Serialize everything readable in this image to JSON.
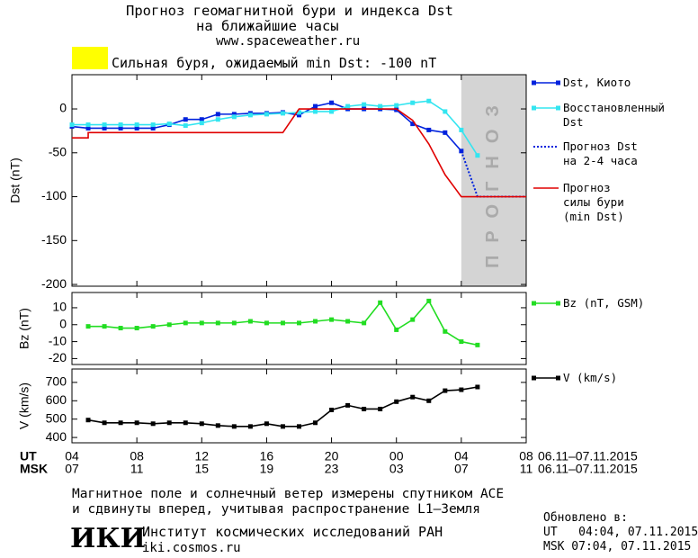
{
  "header": {
    "title": "Прогноз геомагнитной бури и индекса Dst",
    "subtitle": "на ближайшие часы",
    "url": "www.spaceweather.ru",
    "alert": "Сильная буря, ожидаемый min Dst: -100 nT",
    "alert_color": "#ffff00"
  },
  "chart_data": [
    {
      "type": "line",
      "ylabel": "Dst (nT)",
      "xlim": [
        0,
        28
      ],
      "xticks": [
        0,
        4,
        8,
        12,
        16,
        20,
        24,
        28
      ],
      "ylim": [
        -202,
        39
      ],
      "yticks": [
        -200,
        -150,
        -100,
        -50,
        0
      ],
      "forecast_band": {
        "x": [
          24,
          28
        ],
        "label": "ПРОГНОЗ"
      },
      "series": [
        {
          "name": "Dst, Киото",
          "color": "#0022dd",
          "style": "solid",
          "marker": true,
          "x": [
            0,
            1,
            2,
            3,
            4,
            5,
            6,
            7,
            8,
            9,
            10,
            11,
            12,
            13,
            14,
            15,
            16,
            17,
            18,
            19,
            20,
            21,
            22,
            23,
            24
          ],
          "values": [
            -20,
            -22,
            -22,
            -22,
            -22,
            -22,
            -18,
            -12,
            -12,
            -6,
            -6,
            -5,
            -5,
            -4,
            -7,
            3,
            7,
            0,
            0,
            0,
            -1,
            -17,
            -24,
            -27,
            -48
          ]
        },
        {
          "name": "Восстановленный\nDst",
          "color": "#33e5f0",
          "style": "solid",
          "marker": true,
          "x": [
            0,
            1,
            2,
            3,
            4,
            5,
            6,
            7,
            8,
            9,
            10,
            11,
            12,
            13,
            14,
            15,
            16,
            17,
            18,
            19,
            20,
            21,
            22,
            23,
            24,
            25
          ],
          "values": [
            -18,
            -18,
            -18,
            -18,
            -18,
            -18,
            -17,
            -19,
            -16,
            -12,
            -9,
            -7,
            -6,
            -5,
            -4,
            -3,
            -3,
            3,
            5,
            3,
            4,
            7,
            9,
            -3,
            -24,
            -53
          ]
        },
        {
          "name": "Прогноз Dst\nна 2-4 часа",
          "color": "#0022dd",
          "style": "dotted",
          "marker": false,
          "x": [
            24,
            25,
            28
          ],
          "values": [
            -48,
            -100,
            -100
          ]
        },
        {
          "name": "Прогноз\nсилы бури\n(min Dst)",
          "color": "#e00000",
          "style": "solid",
          "marker": false,
          "x": [
            0,
            1,
            1,
            13,
            14,
            20,
            21,
            22,
            23,
            24,
            28
          ],
          "values": [
            -33,
            -33,
            -27,
            -27,
            0,
            0,
            -13,
            -40,
            -75,
            -100,
            -100
          ]
        }
      ]
    },
    {
      "type": "line",
      "ylabel": "Bz (nT)",
      "xlim": [
        0,
        28
      ],
      "xticks": [
        0,
        4,
        8,
        12,
        16,
        20,
        24,
        28
      ],
      "ylim": [
        -23.5,
        19
      ],
      "yticks": [
        -20,
        -10,
        0,
        10
      ],
      "series": [
        {
          "name": "Bz (nT, GSM)",
          "color": "#22dd22",
          "style": "solid",
          "marker": true,
          "x": [
            1,
            2,
            3,
            4,
            5,
            6,
            7,
            8,
            9,
            10,
            11,
            12,
            13,
            14,
            15,
            16,
            17,
            18,
            19,
            20,
            21,
            22,
            23,
            24,
            25
          ],
          "values": [
            -1,
            -1,
            -2,
            -2,
            -1,
            0,
            1,
            1,
            1,
            1,
            2,
            1,
            1,
            1,
            2,
            3,
            2,
            1,
            13,
            -3,
            3,
            14,
            -4,
            -10,
            -12
          ]
        }
      ]
    },
    {
      "type": "line",
      "ylabel": "V (km/s)",
      "xlim": [
        0,
        28
      ],
      "ylim": [
        371,
        773
      ],
      "yticks": [
        400,
        500,
        600,
        700
      ],
      "xlabel": "UT",
      "x2label": "MSK",
      "xrange": "06.11–07.11.2015",
      "x2range": "06.11–07.11.2015",
      "xticks": [
        {
          "value": 0,
          "label": "04"
        },
        {
          "value": 4,
          "label": "08"
        },
        {
          "value": 8,
          "label": "12"
        },
        {
          "value": 12,
          "label": "16"
        },
        {
          "value": 16,
          "label": "20"
        },
        {
          "value": 20,
          "label": "00"
        },
        {
          "value": 24,
          "label": "04"
        },
        {
          "value": 28,
          "label": "08"
        }
      ],
      "x2ticks": [
        {
          "value": 0,
          "label": "07"
        },
        {
          "value": 4,
          "label": "11"
        },
        {
          "value": 8,
          "label": "15"
        },
        {
          "value": 12,
          "label": "19"
        },
        {
          "value": 16,
          "label": "23"
        },
        {
          "value": 20,
          "label": "03"
        },
        {
          "value": 24,
          "label": "07"
        },
        {
          "value": 28,
          "label": "11"
        }
      ],
      "series": [
        {
          "name": "V (km/s)",
          "color": "#000000",
          "style": "solid",
          "marker": true,
          "x": [
            1,
            2,
            3,
            4,
            5,
            6,
            7,
            8,
            9,
            10,
            11,
            12,
            13,
            14,
            15,
            16,
            17,
            18,
            19,
            20,
            21,
            22,
            23,
            24,
            25
          ],
          "values": [
            495,
            480,
            480,
            480,
            475,
            480,
            480,
            475,
            465,
            460,
            460,
            475,
            460,
            460,
            480,
            550,
            575,
            555,
            555,
            595,
            620,
            600,
            655,
            660,
            675
          ]
        }
      ]
    }
  ],
  "footer": {
    "note_line1": "Магнитное поле и солнечный ветер измерены спутником ACE",
    "note_line2": "и сдвинуты вперед, учитывая распространение L1–Земля",
    "logo": "ИКИ",
    "institute": "Институт космических исследований РАН",
    "site": "iki.cosmos.ru",
    "updated": "Обновлено в:",
    "updated_ut": "UT   04:04, 07.11.2015",
    "updated_msk": "MSK 07:04, 07.11.2015"
  }
}
